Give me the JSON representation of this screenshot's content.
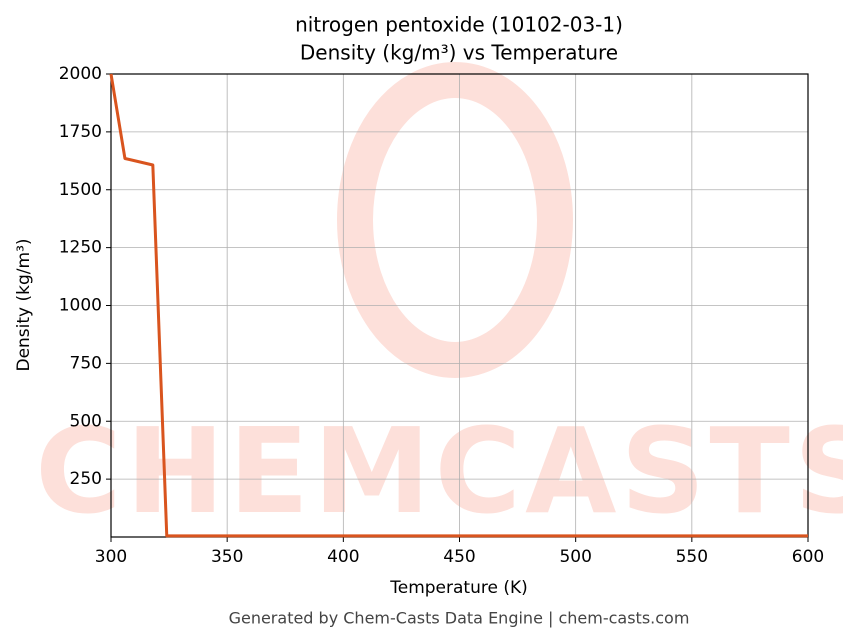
{
  "chart_data": {
    "type": "line",
    "title": "nitrogen pentoxide (10102-03-1)",
    "subtitle": "Density (kg/m³) vs Temperature",
    "x_label": "Temperature (K)",
    "y_label": "Density (kg/m³)",
    "watermark": "CHEMCASTS",
    "footer": "Generated by Chem-Casts Data Engine | chem-casts.com",
    "x": [
      300,
      306,
      318,
      324,
      600
    ],
    "series": [
      {
        "name": "Density",
        "color": "#d9541e",
        "values": [
          2000,
          1635,
          1607,
          5,
          5
        ]
      }
    ],
    "xlim": [
      300,
      600
    ],
    "xticks": [
      300,
      350,
      400,
      450,
      500,
      550,
      600
    ],
    "ylim": [
      0,
      2000
    ],
    "yticks": [
      250,
      500,
      750,
      1000,
      1250,
      1500,
      1750,
      2000
    ],
    "grid": true
  }
}
